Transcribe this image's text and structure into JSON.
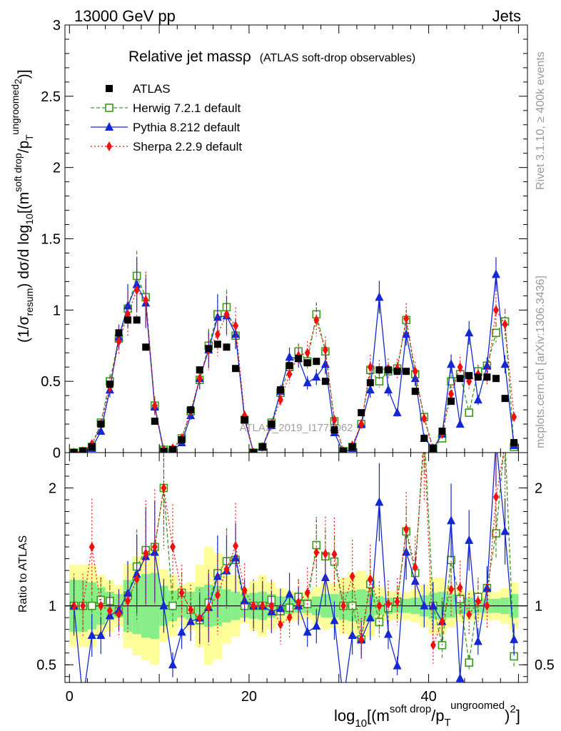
{
  "header": {
    "energy_label": "13000 GeV pp",
    "process_label": "Jets"
  },
  "side_labels": {
    "rivet": "Rivet 3.1.10, ≥ 400k events",
    "mcplots": "mcplots.cern.ch [arXiv:1306.3436]"
  },
  "watermark": "ATLAS_2019_I1772062",
  "colors": {
    "atlas": "#000000",
    "herwig": "#3a9a1a",
    "pythia": "#1428d2",
    "sherpa": "#f01010",
    "band_outer": "#ffff99",
    "band_inner": "#88ee88"
  },
  "chart_data": [
    {
      "type": "scatter",
      "title": "Relative jet massρ",
      "subtitle": "(ATLAS soft-drop observables)",
      "ylabel_parts": {
        "prefix": "(1/σ",
        "resum": "resum",
        "mid": ") dσ/d log",
        "ten": "10",
        "arg_open": "[(m",
        "soft_drop": "soft drop",
        "over": "/p",
        "t": "T",
        "ungroomed": "ungroomed",
        "sq": "2",
        "close": ")]"
      },
      "xlim": [
        -0.5,
        51
      ],
      "ylim": [
        0,
        3
      ],
      "yticks": [
        "0",
        "0.5",
        "1",
        "1.5",
        "2",
        "2.5",
        "3"
      ],
      "legend_position": "top-left",
      "series": [
        {
          "name": "ATLAS",
          "style": "data",
          "values": [
            0.0,
            0.01,
            0.04,
            0.2,
            0.48,
            0.84,
            0.93,
            0.93,
            0.74,
            0.22,
            0.01,
            0.02,
            0.09,
            0.3,
            0.58,
            0.73,
            0.76,
            0.74,
            0.59,
            0.23,
            0.0,
            0.04,
            0.2,
            0.44,
            0.61,
            0.66,
            0.63,
            0.64,
            0.5,
            0.16,
            0.01,
            0.04,
            0.28,
            0.49,
            0.58,
            0.58,
            0.57,
            0.57,
            0.43,
            0.1,
            0.03,
            0.15,
            0.36,
            0.52,
            0.54,
            0.53,
            0.53,
            0.52,
            0.38,
            0.07
          ]
        },
        {
          "name": "Herwig 7.2.1 default",
          "style": "dashed",
          "values": [
            0.0,
            0.01,
            0.04,
            0.21,
            0.5,
            0.8,
            1.01,
            1.24,
            1.09,
            0.33,
            0.02,
            0.02,
            0.1,
            0.29,
            0.51,
            0.75,
            0.97,
            1.02,
            0.82,
            0.23,
            0.0,
            0.04,
            0.21,
            0.42,
            0.6,
            0.71,
            0.64,
            0.97,
            0.71,
            0.22,
            0.01,
            0.04,
            0.2,
            0.58,
            0.5,
            0.57,
            0.59,
            0.93,
            0.55,
            0.25,
            0.03,
            0.1,
            0.5,
            0.55,
            0.28,
            0.57,
            0.61,
            0.84,
            0.92,
            0.04
          ]
        },
        {
          "name": "Pythia 8.212 default",
          "style": "solid",
          "values": [
            0.0,
            0.0,
            0.03,
            0.15,
            0.44,
            0.81,
            1.03,
            1.18,
            1.05,
            0.32,
            0.01,
            0.01,
            0.07,
            0.26,
            0.52,
            0.72,
            0.95,
            0.96,
            0.83,
            0.24,
            0.0,
            0.04,
            0.19,
            0.43,
            0.67,
            0.66,
            0.49,
            0.53,
            0.62,
            0.14,
            0.0,
            0.03,
            0.2,
            0.44,
            1.09,
            0.44,
            0.28,
            0.83,
            0.52,
            0.1,
            0.03,
            0.13,
            0.62,
            0.2,
            0.84,
            0.37,
            0.61,
            1.25,
            0.62,
            0.05
          ]
        },
        {
          "name": "Sherpa 2.2.9 default",
          "style": "dotted",
          "values": [
            0.0,
            0.01,
            0.06,
            0.2,
            0.46,
            0.78,
            0.97,
            1.14,
            1.07,
            0.33,
            0.02,
            0.03,
            0.1,
            0.29,
            0.52,
            0.72,
            0.83,
            0.97,
            0.89,
            0.26,
            0.0,
            0.04,
            0.2,
            0.37,
            0.55,
            0.68,
            0.7,
            0.93,
            0.72,
            0.23,
            0.01,
            0.05,
            0.2,
            0.6,
            0.58,
            0.59,
            0.59,
            0.94,
            0.57,
            0.24,
            0.02,
            0.13,
            0.41,
            0.6,
            0.5,
            0.55,
            0.53,
            1.0,
            0.9,
            0.25
          ]
        }
      ]
    },
    {
      "type": "scatter",
      "ylabel": "Ratio to ATLAS",
      "xlabel_parts": {
        "log": "log",
        "ten": "10",
        "arg_open": "[(m",
        "soft_drop": "soft drop",
        "over": "/p",
        "t": "T",
        "ungroomed": "ungroomed",
        "sq": "2",
        "close": ")]"
      },
      "xlim": [
        -0.5,
        51
      ],
      "ylim": [
        0.35,
        2.3
      ],
      "xticks": [
        "0",
        "20",
        "40"
      ],
      "yticks_left": [
        "0.5",
        "1",
        "2"
      ],
      "yticks_right": [
        "0.5",
        "1",
        "2"
      ],
      "band_outer_half_width": [
        0.35,
        0.35,
        0.35,
        0.26,
        0.22,
        0.18,
        0.36,
        0.42,
        0.46,
        0.5,
        0.31,
        0.26,
        0.18,
        0.2,
        0.35,
        0.5,
        0.45,
        0.32,
        0.26,
        0.15,
        0.21,
        0.26,
        0.2,
        0.15,
        0.13,
        0.12,
        0.12,
        0.16,
        0.2,
        0.19,
        0.24,
        0.28,
        0.3,
        0.26,
        0.16,
        0.13,
        0.12,
        0.12,
        0.14,
        0.18,
        0.24,
        0.24,
        0.18,
        0.14,
        0.13,
        0.12,
        0.12,
        0.12,
        0.15,
        0.2
      ],
      "band_inner_half_width": [
        0.22,
        0.22,
        0.2,
        0.16,
        0.12,
        0.1,
        0.22,
        0.24,
        0.27,
        0.28,
        0.17,
        0.13,
        0.1,
        0.12,
        0.16,
        0.18,
        0.17,
        0.14,
        0.12,
        0.1,
        0.11,
        0.12,
        0.1,
        0.08,
        0.07,
        0.06,
        0.06,
        0.08,
        0.1,
        0.1,
        0.12,
        0.13,
        0.14,
        0.13,
        0.08,
        0.07,
        0.06,
        0.06,
        0.07,
        0.09,
        0.11,
        0.12,
        0.1,
        0.07,
        0.07,
        0.06,
        0.06,
        0.06,
        0.07,
        0.1
      ]
    }
  ]
}
